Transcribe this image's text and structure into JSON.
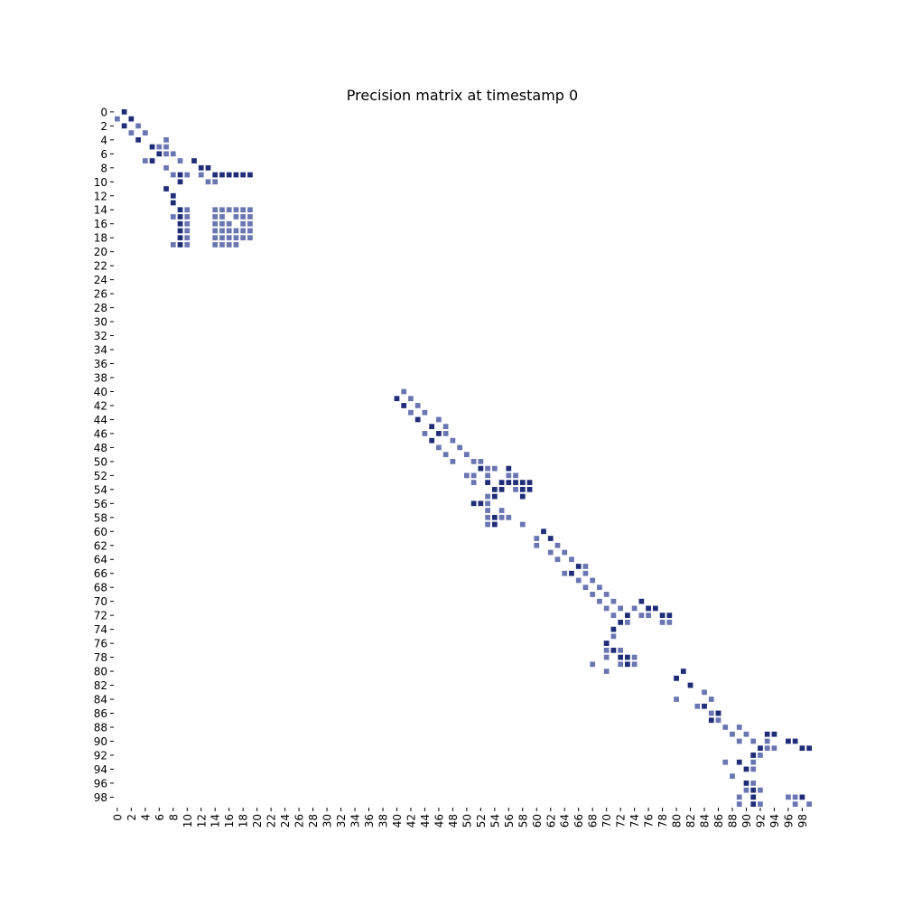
{
  "chart_data": {
    "type": "heatmap",
    "title": "Precision matrix at timestamp 0",
    "xlabel": "",
    "ylabel": "",
    "size": 100,
    "tick_step": 2,
    "x_tick_labels": [
      "0",
      "2",
      "4",
      "6",
      "8",
      "10",
      "12",
      "14",
      "16",
      "18",
      "20",
      "22",
      "24",
      "26",
      "28",
      "30",
      "32",
      "34",
      "36",
      "38",
      "40",
      "42",
      "44",
      "46",
      "48",
      "50",
      "52",
      "54",
      "56",
      "58",
      "60",
      "62",
      "64",
      "66",
      "68",
      "70",
      "72",
      "74",
      "76",
      "78",
      "80",
      "82",
      "84",
      "86",
      "88",
      "90",
      "92",
      "94",
      "96",
      "98"
    ],
    "y_tick_labels": [
      "0",
      "2",
      "4",
      "6",
      "8",
      "10",
      "12",
      "14",
      "16",
      "18",
      "20",
      "22",
      "24",
      "26",
      "28",
      "30",
      "32",
      "34",
      "36",
      "38",
      "40",
      "42",
      "44",
      "46",
      "48",
      "50",
      "52",
      "54",
      "56",
      "58",
      "60",
      "62",
      "64",
      "66",
      "68",
      "70",
      "72",
      "74",
      "76",
      "78",
      "80",
      "82",
      "84",
      "86",
      "88",
      "90",
      "92",
      "94",
      "96",
      "98"
    ],
    "colorbar": false,
    "grid": false,
    "colors": {
      "strong": "#1f2d78",
      "weak": "#6a76b2",
      "background": "#ffffff"
    },
    "value_levels": {
      "strong": 1,
      "weak": 0.5
    },
    "cells": {
      "strong": [
        [
          0,
          1
        ],
        [
          1,
          2
        ],
        [
          2,
          1
        ],
        [
          4,
          3
        ],
        [
          5,
          5
        ],
        [
          6,
          6
        ],
        [
          7,
          5
        ],
        [
          7,
          11
        ],
        [
          8,
          12
        ],
        [
          8,
          13
        ],
        [
          9,
          14
        ],
        [
          9,
          15
        ],
        [
          9,
          16
        ],
        [
          9,
          17
        ],
        [
          9,
          18
        ],
        [
          9,
          19
        ],
        [
          9,
          9
        ],
        [
          10,
          9
        ],
        [
          11,
          7
        ],
        [
          12,
          8
        ],
        [
          13,
          8
        ],
        [
          14,
          9
        ],
        [
          15,
          9
        ],
        [
          16,
          9
        ],
        [
          17,
          9
        ],
        [
          18,
          9
        ],
        [
          19,
          9
        ],
        [
          41,
          40
        ],
        [
          42,
          41
        ],
        [
          44,
          43
        ],
        [
          45,
          45
        ],
        [
          46,
          46
        ],
        [
          47,
          45
        ],
        [
          51,
          52
        ],
        [
          51,
          56
        ],
        [
          53,
          53
        ],
        [
          53,
          55
        ],
        [
          53,
          56
        ],
        [
          53,
          57
        ],
        [
          53,
          58
        ],
        [
          53,
          59
        ],
        [
          54,
          54
        ],
        [
          54,
          55
        ],
        [
          54,
          58
        ],
        [
          54,
          59
        ],
        [
          55,
          54
        ],
        [
          55,
          58
        ],
        [
          56,
          51
        ],
        [
          56,
          52
        ],
        [
          58,
          54
        ],
        [
          59,
          54
        ],
        [
          60,
          61
        ],
        [
          61,
          62
        ],
        [
          65,
          66
        ],
        [
          66,
          65
        ],
        [
          70,
          75
        ],
        [
          71,
          76
        ],
        [
          71,
          77
        ],
        [
          72,
          73
        ],
        [
          72,
          78
        ],
        [
          72,
          79
        ],
        [
          73,
          72
        ],
        [
          74,
          71
        ],
        [
          76,
          70
        ],
        [
          77,
          71
        ],
        [
          78,
          72
        ],
        [
          78,
          73
        ],
        [
          79,
          73
        ],
        [
          80,
          81
        ],
        [
          81,
          80
        ],
        [
          82,
          82
        ],
        [
          85,
          84
        ],
        [
          86,
          86
        ],
        [
          87,
          85
        ],
        [
          89,
          93
        ],
        [
          89,
          94
        ],
        [
          90,
          96
        ],
        [
          90,
          97
        ],
        [
          91,
          92
        ],
        [
          91,
          98
        ],
        [
          91,
          99
        ],
        [
          92,
          91
        ],
        [
          93,
          89
        ],
        [
          94,
          90
        ],
        [
          96,
          90
        ],
        [
          97,
          91
        ],
        [
          98,
          91
        ],
        [
          98,
          98
        ],
        [
          99,
          91
        ]
      ],
      "weak": [
        [
          1,
          0
        ],
        [
          2,
          3
        ],
        [
          3,
          2
        ],
        [
          3,
          4
        ],
        [
          4,
          7
        ],
        [
          5,
          6
        ],
        [
          5,
          7
        ],
        [
          6,
          7
        ],
        [
          6,
          8
        ],
        [
          7,
          4
        ],
        [
          7,
          9
        ],
        [
          8,
          7
        ],
        [
          9,
          8
        ],
        [
          9,
          10
        ],
        [
          9,
          12
        ],
        [
          10,
          13
        ],
        [
          10,
          14
        ],
        [
          14,
          10
        ],
        [
          14,
          14
        ],
        [
          14,
          15
        ],
        [
          14,
          16
        ],
        [
          14,
          17
        ],
        [
          14,
          18
        ],
        [
          14,
          19
        ],
        [
          15,
          8
        ],
        [
          15,
          10
        ],
        [
          15,
          14
        ],
        [
          15,
          15
        ],
        [
          15,
          17
        ],
        [
          15,
          18
        ],
        [
          15,
          19
        ],
        [
          16,
          10
        ],
        [
          16,
          14
        ],
        [
          16,
          15
        ],
        [
          16,
          16
        ],
        [
          16,
          18
        ],
        [
          16,
          19
        ],
        [
          17,
          10
        ],
        [
          17,
          14
        ],
        [
          17,
          15
        ],
        [
          17,
          16
        ],
        [
          17,
          17
        ],
        [
          17,
          18
        ],
        [
          17,
          19
        ],
        [
          18,
          10
        ],
        [
          18,
          14
        ],
        [
          18,
          15
        ],
        [
          18,
          16
        ],
        [
          18,
          17
        ],
        [
          18,
          18
        ],
        [
          18,
          19
        ],
        [
          19,
          8
        ],
        [
          19,
          10
        ],
        [
          19,
          14
        ],
        [
          19,
          15
        ],
        [
          19,
          16
        ],
        [
          19,
          17
        ],
        [
          40,
          41
        ],
        [
          41,
          42
        ],
        [
          42,
          43
        ],
        [
          43,
          42
        ],
        [
          43,
          44
        ],
        [
          44,
          46
        ],
        [
          45,
          47
        ],
        [
          46,
          44
        ],
        [
          46,
          47
        ],
        [
          47,
          48
        ],
        [
          48,
          46
        ],
        [
          48,
          49
        ],
        [
          49,
          47
        ],
        [
          49,
          50
        ],
        [
          50,
          48
        ],
        [
          50,
          51
        ],
        [
          50,
          52
        ],
        [
          51,
          53
        ],
        [
          51,
          54
        ],
        [
          52,
          50
        ],
        [
          52,
          51
        ],
        [
          52,
          53
        ],
        [
          52,
          56
        ],
        [
          52,
          57
        ],
        [
          53,
          51
        ],
        [
          54,
          57
        ],
        [
          55,
          53
        ],
        [
          56,
          53
        ],
        [
          57,
          53
        ],
        [
          57,
          55
        ],
        [
          58,
          53
        ],
        [
          58,
          55
        ],
        [
          58,
          56
        ],
        [
          59,
          53
        ],
        [
          59,
          58
        ],
        [
          61,
          60
        ],
        [
          62,
          60
        ],
        [
          62,
          63
        ],
        [
          63,
          62
        ],
        [
          63,
          64
        ],
        [
          64,
          63
        ],
        [
          64,
          65
        ],
        [
          65,
          67
        ],
        [
          66,
          64
        ],
        [
          66,
          67
        ],
        [
          67,
          66
        ],
        [
          67,
          68
        ],
        [
          68,
          67
        ],
        [
          68,
          69
        ],
        [
          69,
          68
        ],
        [
          69,
          70
        ],
        [
          70,
          69
        ],
        [
          70,
          71
        ],
        [
          71,
          70
        ],
        [
          71,
          72
        ],
        [
          71,
          74
        ],
        [
          71,
          76
        ],
        [
          72,
          71
        ],
        [
          72,
          75
        ],
        [
          72,
          76
        ],
        [
          73,
          73
        ],
        [
          73,
          78
        ],
        [
          73,
          79
        ],
        [
          75,
          71
        ],
        [
          76,
          70
        ],
        [
          77,
          70
        ],
        [
          77,
          72
        ],
        [
          78,
          70
        ],
        [
          78,
          74
        ],
        [
          79,
          68
        ],
        [
          79,
          72
        ],
        [
          79,
          74
        ],
        [
          80,
          70
        ],
        [
          81,
          80
        ],
        [
          82,
          82
        ],
        [
          83,
          84
        ],
        [
          84,
          80
        ],
        [
          84,
          85
        ],
        [
          85,
          83
        ],
        [
          86,
          85
        ],
        [
          86,
          86
        ],
        [
          87,
          86
        ],
        [
          88,
          87
        ],
        [
          88,
          89
        ],
        [
          89,
          88
        ],
        [
          89,
          90
        ],
        [
          90,
          89
        ],
        [
          90,
          91
        ],
        [
          90,
          93
        ],
        [
          91,
          93
        ],
        [
          91,
          94
        ],
        [
          92,
          91
        ],
        [
          92,
          92
        ],
        [
          93,
          87
        ],
        [
          93,
          91
        ],
        [
          94,
          91
        ],
        [
          95,
          88
        ],
        [
          96,
          91
        ],
        [
          97,
          90
        ],
        [
          97,
          92
        ],
        [
          98,
          89
        ],
        [
          98,
          96
        ],
        [
          98,
          97
        ],
        [
          99,
          89
        ],
        [
          99,
          92
        ],
        [
          99,
          97
        ],
        [
          99,
          99
        ]
      ]
    }
  }
}
